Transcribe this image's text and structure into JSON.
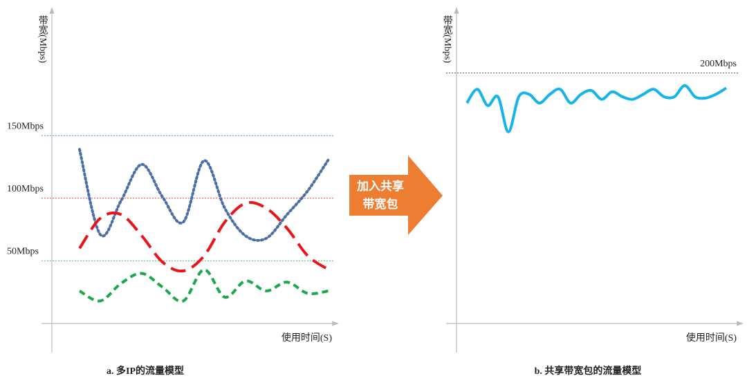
{
  "chart_data": [
    {
      "type": "line",
      "caption": "a. 多IP的流量模型",
      "y_label": "带宽(Mbps)",
      "x_label": "使用时间(S)",
      "ylim": [
        0,
        250
      ],
      "yticks": [
        {
          "value": 150,
          "label": "150Mbps"
        },
        {
          "value": 100,
          "label": "100Mbps"
        },
        {
          "value": 50,
          "label": "50Mbps"
        }
      ],
      "ytick_colors": [
        "#2e7dc0",
        "#e8141a",
        "#1aa84a"
      ],
      "categories": [
        null,
        null,
        null,
        null,
        null,
        null,
        null,
        null,
        null,
        null,
        null,
        null,
        null
      ],
      "series": [
        {
          "color": "#4a6fa5",
          "dash": "dot",
          "values": [
            139,
            71,
            98,
            127,
            101,
            81,
            130,
            92,
            70,
            68,
            87,
            106,
            131
          ]
        },
        {
          "color": "#e8141a",
          "dash": "dash",
          "values": [
            60,
            84,
            87,
            70,
            49,
            42,
            54,
            81,
            96,
            92,
            76,
            54,
            43
          ]
        },
        {
          "color": "#1aa84a",
          "dash": "short",
          "values": [
            26,
            18,
            32,
            40,
            29,
            18,
            43,
            21,
            34,
            26,
            33,
            24,
            26
          ]
        }
      ]
    },
    {
      "type": "line",
      "caption": "b. 共享带宽包的流量模型",
      "y_label": "带宽(Mbps)",
      "x_label": "使用时间(S)",
      "ylim": [
        0,
        250
      ],
      "yticks": [
        {
          "value": 200,
          "label": "200Mbps"
        }
      ],
      "ytick_colors": [
        "#222222"
      ],
      "categories": [
        null,
        null,
        null,
        null,
        null,
        null,
        null,
        null,
        null,
        null,
        null,
        null,
        null,
        null,
        null,
        null,
        null,
        null,
        null,
        null,
        null,
        null,
        null,
        null,
        null,
        null
      ],
      "series": [
        {
          "color": "#16b4ec",
          "dash": "solid",
          "values": [
            176,
            187,
            174,
            181,
            153,
            181,
            183,
            176,
            183,
            187,
            176,
            183,
            186,
            179,
            185,
            181,
            179,
            183,
            187,
            181,
            181,
            190,
            181,
            180,
            183,
            188
          ]
        }
      ]
    }
  ],
  "arrow": {
    "lines": [
      "加入共享",
      "带宽包"
    ]
  }
}
